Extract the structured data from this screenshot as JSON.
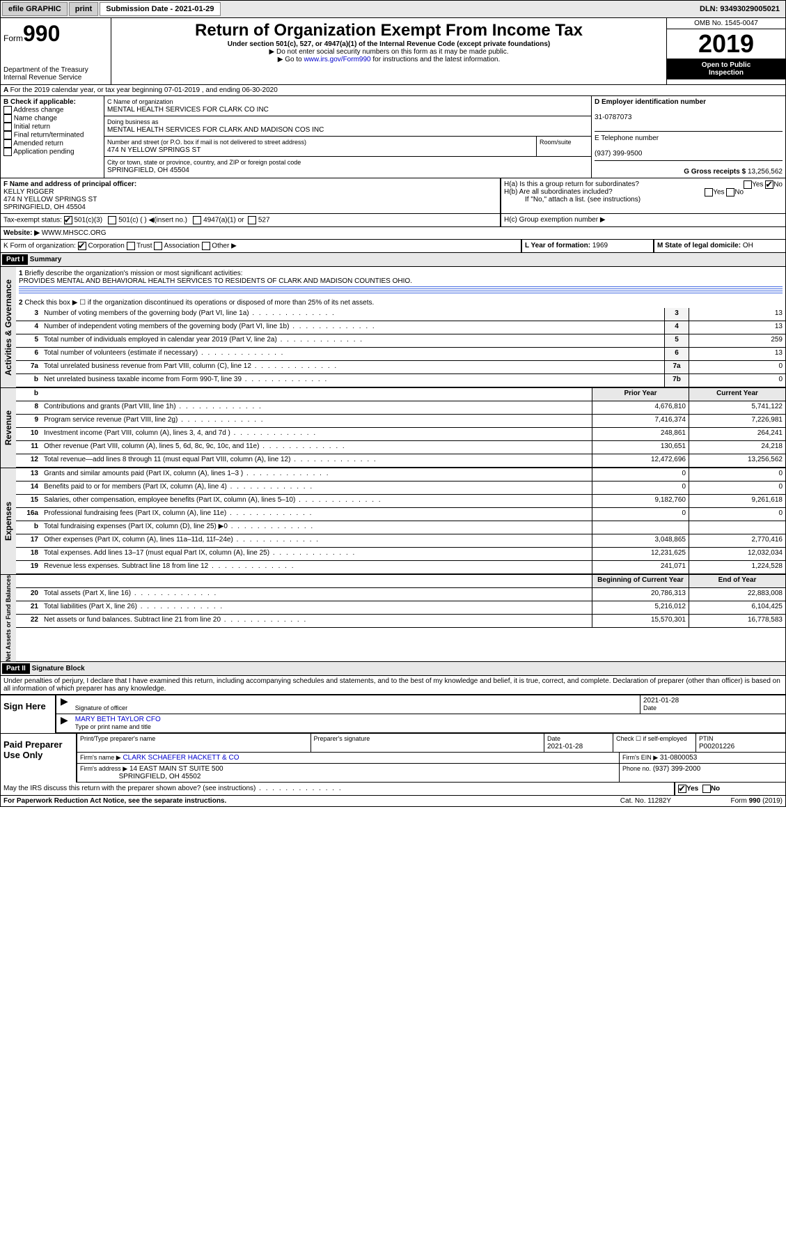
{
  "topbar": {
    "efile": "efile GRAPHIC",
    "print": "print",
    "subdate_lbl": "Submission Date - 2021-01-29",
    "dln": "DLN: 93493029005021"
  },
  "header": {
    "form": "990",
    "form_pre": "Form",
    "title": "Return of Organization Exempt From Income Tax",
    "sub1": "Under section 501(c), 527, or 4947(a)(1) of the Internal Revenue Code (except private foundations)",
    "sub2": "▶ Do not enter social security numbers on this form as it may be made public.",
    "sub3_pre": "▶ Go to ",
    "sub3_link": "www.irs.gov/Form990",
    "sub3_post": " for instructions and the latest information.",
    "dept": "Department of the Treasury",
    "irs": "Internal Revenue Service",
    "omb": "OMB No. 1545-0047",
    "year": "2019",
    "open": "Open to Public",
    "insp": "Inspection"
  },
  "A": {
    "txt": "For the 2019 calendar year, or tax year beginning 07-01-2019    , and ending 06-30-2020"
  },
  "B": {
    "lbl": "B Check if applicable:",
    "items": [
      "Address change",
      "Name change",
      "Initial return",
      "Final return/terminated",
      "Amended return",
      "Application pending"
    ]
  },
  "C": {
    "lbl": "C Name of organization",
    "name": "MENTAL HEALTH SERVICES FOR CLARK CO INC",
    "dba_lbl": "Doing business as",
    "dba": "MENTAL HEALTH SERVICES FOR CLARK AND MADISON COS INC",
    "addr_lbl": "Number and street (or P.O. box if mail is not delivered to street address)",
    "room_lbl": "Room/suite",
    "addr": "474 N YELLOW SPRINGS ST",
    "city_lbl": "City or town, state or province, country, and ZIP or foreign postal code",
    "city": "SPRINGFIELD, OH  45504"
  },
  "D": {
    "lbl": "D Employer identification number",
    "val": "31-0787073"
  },
  "E": {
    "lbl": "E Telephone number",
    "val": "(937) 399-9500"
  },
  "G": {
    "lbl": "G Gross receipts $",
    "val": "13,256,562"
  },
  "F": {
    "lbl": "F  Name and address of principal officer:",
    "name": "KELLY RIGGER",
    "l1": "474 N YELLOW SPRINGS ST",
    "l2": "SPRINGFIELD, OH  45504"
  },
  "H": {
    "a": "H(a)  Is this a group return for subordinates?",
    "b": "H(b)  Are all subordinates included?",
    "b2": "If \"No,\" attach a list. (see instructions)",
    "c": "H(c)  Group exemption number ▶",
    "yes": "Yes",
    "no": "No"
  },
  "I": {
    "lbl": "Tax-exempt status:",
    "o1": "501(c)(3)",
    "o2": "501(c) (  ) ◀(insert no.)",
    "o3": "4947(a)(1) or",
    "o4": "527"
  },
  "J": {
    "lbl": "Website: ▶",
    "val": "WWW.MHSCC.ORG"
  },
  "K": {
    "lbl": "K Form of organization:",
    "o1": "Corporation",
    "o2": "Trust",
    "o3": "Association",
    "o4": "Other ▶"
  },
  "L": {
    "lbl": "L Year of formation:",
    "val": "1969"
  },
  "M": {
    "lbl": "M State of legal domicile:",
    "val": "OH"
  },
  "part1": {
    "hdr": "Part I",
    "title": "Summary",
    "l1": "Briefly describe the organization's mission or most significant activities:",
    "l1v": "PROVIDES MENTAL AND BEHAVIORAL HEALTH SERVICES TO RESIDENTS OF CLARK AND MADISON COUNTIES OHIO.",
    "l2": "Check this box ▶ ☐  if the organization discontinued its operations or disposed of more than 25% of its net assets."
  },
  "sections": {
    "gov": "Activities & Governance",
    "rev": "Revenue",
    "exp": "Expenses",
    "net": "Net Assets or Fund Balances"
  },
  "cols": {
    "prior": "Prior Year",
    "curr": "Current Year",
    "beg": "Beginning of Current Year",
    "end": "End of Year"
  },
  "rows": [
    {
      "n": "3",
      "t": "Number of voting members of the governing body (Part VI, line 1a)",
      "b": "3",
      "v": "13"
    },
    {
      "n": "4",
      "t": "Number of independent voting members of the governing body (Part VI, line 1b)",
      "b": "4",
      "v": "13"
    },
    {
      "n": "5",
      "t": "Total number of individuals employed in calendar year 2019 (Part V, line 2a)",
      "b": "5",
      "v": "259"
    },
    {
      "n": "6",
      "t": "Total number of volunteers (estimate if necessary)",
      "b": "6",
      "v": "13"
    },
    {
      "n": "7a",
      "t": "Total unrelated business revenue from Part VIII, column (C), line 12",
      "b": "7a",
      "v": "0"
    },
    {
      "n": "b",
      "t": "Net unrelated business taxable income from Form 990-T, line 39",
      "b": "7b",
      "v": "0"
    }
  ],
  "rev": [
    {
      "n": "8",
      "t": "Contributions and grants (Part VIII, line 1h)",
      "p": "4,676,810",
      "c": "5,741,122"
    },
    {
      "n": "9",
      "t": "Program service revenue (Part VIII, line 2g)",
      "p": "7,416,374",
      "c": "7,226,981"
    },
    {
      "n": "10",
      "t": "Investment income (Part VIII, column (A), lines 3, 4, and 7d )",
      "p": "248,861",
      "c": "264,241"
    },
    {
      "n": "11",
      "t": "Other revenue (Part VIII, column (A), lines 5, 6d, 8c, 9c, 10c, and 11e)",
      "p": "130,651",
      "c": "24,218"
    },
    {
      "n": "12",
      "t": "Total revenue—add lines 8 through 11 (must equal Part VIII, column (A), line 12)",
      "p": "12,472,696",
      "c": "13,256,562"
    }
  ],
  "exp": [
    {
      "n": "13",
      "t": "Grants and similar amounts paid (Part IX, column (A), lines 1–3 )",
      "p": "0",
      "c": "0"
    },
    {
      "n": "14",
      "t": "Benefits paid to or for members (Part IX, column (A), line 4)",
      "p": "0",
      "c": "0"
    },
    {
      "n": "15",
      "t": "Salaries, other compensation, employee benefits (Part IX, column (A), lines 5–10)",
      "p": "9,182,760",
      "c": "9,261,618"
    },
    {
      "n": "16a",
      "t": "Professional fundraising fees (Part IX, column (A), line 11e)",
      "p": "0",
      "c": "0"
    },
    {
      "n": "b",
      "t": "Total fundraising expenses (Part IX, column (D), line 25) ▶0",
      "p": "",
      "c": ""
    },
    {
      "n": "17",
      "t": "Other expenses (Part IX, column (A), lines 11a–11d, 11f–24e)",
      "p": "3,048,865",
      "c": "2,770,416"
    },
    {
      "n": "18",
      "t": "Total expenses. Add lines 13–17 (must equal Part IX, column (A), line 25)",
      "p": "12,231,625",
      "c": "12,032,034"
    },
    {
      "n": "19",
      "t": "Revenue less expenses. Subtract line 18 from line 12",
      "p": "241,071",
      "c": "1,224,528"
    }
  ],
  "net": [
    {
      "n": "20",
      "t": "Total assets (Part X, line 16)",
      "p": "20,786,313",
      "c": "22,883,008"
    },
    {
      "n": "21",
      "t": "Total liabilities (Part X, line 26)",
      "p": "5,216,012",
      "c": "6,104,425"
    },
    {
      "n": "22",
      "t": "Net assets or fund balances. Subtract line 21 from line 20",
      "p": "15,570,301",
      "c": "16,778,583"
    }
  ],
  "part2": {
    "hdr": "Part II",
    "title": "Signature Block",
    "decl": "Under penalties of perjury, I declare that I have examined this return, including accompanying schedules and statements, and to the best of my knowledge and belief, it is true, correct, and complete. Declaration of preparer (other than officer) is based on all information of which preparer has any knowledge."
  },
  "sign": {
    "here": "Sign Here",
    "sig_lbl": "Signature of officer",
    "date_lbl": "Date",
    "date": "2021-01-28",
    "name": "MARY BETH TAYLOR  CFO",
    "name_lbl": "Type or print name and title"
  },
  "paid": {
    "lbl": "Paid Preparer Use Only",
    "prep_lbl": "Print/Type preparer's name",
    "sig_lbl": "Preparer's signature",
    "date_lbl": "Date",
    "date": "2021-01-28",
    "chk_lbl": "Check ☐ if self-employed",
    "ptin_lbl": "PTIN",
    "ptin": "P00201226",
    "firm_lbl": "Firm's name   ▶",
    "firm": "CLARK SCHAEFER HACKETT & CO",
    "ein_lbl": "Firm's EIN ▶",
    "ein": "31-0800053",
    "addr_lbl": "Firm's address ▶",
    "addr": "14 EAST MAIN ST SUITE 500",
    "city": "SPRINGFIELD, OH  45502",
    "phone_lbl": "Phone no.",
    "phone": "(937) 399-2000"
  },
  "footer": {
    "discuss": "May the IRS discuss this return with the preparer shown above? (see instructions)",
    "pra": "For Paperwork Reduction Act Notice, see the separate instructions.",
    "cat": "Cat. No. 11282Y",
    "ver": "Form 990 (2019)",
    "yes": "Yes",
    "no": "No"
  }
}
